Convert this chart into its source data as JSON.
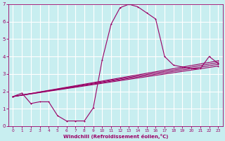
{
  "xlabel": "Windchill (Refroidissement éolien,°C)",
  "bg_color": "#c8eef0",
  "line_color": "#990066",
  "grid_color": "#ffffff",
  "xlim": [
    -0.5,
    23.5
  ],
  "ylim": [
    0,
    7
  ],
  "xticks": [
    0,
    1,
    2,
    3,
    4,
    5,
    6,
    7,
    8,
    9,
    10,
    11,
    12,
    13,
    14,
    15,
    16,
    17,
    18,
    19,
    20,
    21,
    22,
    23
  ],
  "yticks": [
    0,
    1,
    2,
    3,
    4,
    5,
    6,
    7
  ],
  "curve1_x": [
    0,
    1,
    2,
    3,
    4,
    5,
    6,
    7,
    8,
    9,
    10,
    11,
    12,
    13,
    14,
    15,
    16,
    17,
    18,
    19,
    20,
    21,
    22,
    23
  ],
  "curve1_y": [
    1.7,
    1.9,
    1.3,
    1.4,
    1.4,
    0.6,
    0.3,
    0.3,
    0.3,
    1.05,
    3.8,
    5.85,
    6.8,
    7.0,
    6.85,
    6.5,
    6.15,
    4.0,
    3.5,
    3.4,
    3.3,
    3.3,
    4.0,
    3.6
  ],
  "curve2_x": [
    0,
    23
  ],
  "curve2_y": [
    1.7,
    3.45
  ],
  "curve3_x": [
    0,
    23
  ],
  "curve3_y": [
    1.7,
    3.55
  ],
  "curve4_x": [
    0,
    23
  ],
  "curve4_y": [
    1.7,
    3.65
  ],
  "curve5_x": [
    0,
    23
  ],
  "curve5_y": [
    1.7,
    3.75
  ]
}
